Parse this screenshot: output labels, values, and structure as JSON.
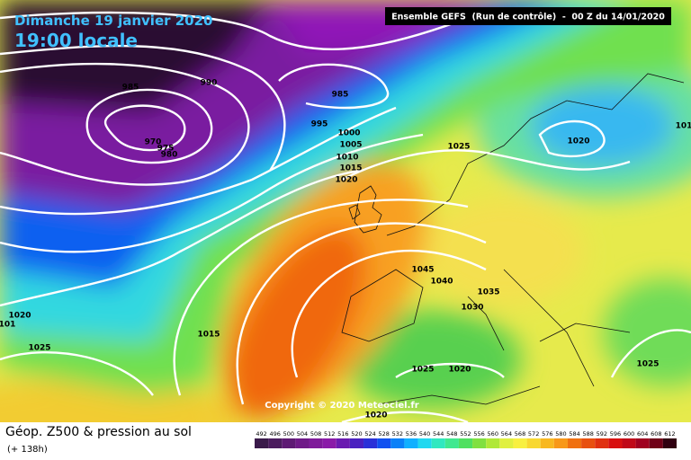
{
  "header": {
    "date": "Dimanche 19 janvier 2020",
    "time": "19:00 locale",
    "run": "Ensemble GEFS  (Run de contrôle)  -  00 Z du 14/01/2020"
  },
  "copyright": "Copyright © 2020 Meteociel.fr",
  "footer": {
    "title": "Géop. Z500 & pression au sol",
    "lead": "(+ 138h)"
  },
  "isobar_labels": [
    985,
    990,
    985,
    995,
    1000,
    1005,
    1010,
    1015,
    1020,
    970,
    975,
    980,
    1025,
    1020,
    101,
    1020,
    101,
    1025,
    1015,
    1045,
    1040,
    1035,
    1030,
    1025,
    1020,
    1025,
    1020
  ],
  "legend": {
    "ticks": [
      492,
      496,
      500,
      504,
      508,
      512,
      516,
      520,
      524,
      528,
      532,
      536,
      540,
      544,
      548,
      552,
      556,
      560,
      564,
      568,
      572,
      576,
      580,
      584,
      588,
      592,
      596,
      600,
      604,
      608,
      612
    ],
    "colors": [
      "#3a1a4a",
      "#4b1c5e",
      "#5e1a74",
      "#6f1a88",
      "#7f1a9a",
      "#8a1aa8",
      "#6a1ab0",
      "#4a20c0",
      "#2a30d8",
      "#1050f0",
      "#0a80f8",
      "#10b0ff",
      "#20d8f0",
      "#30e8c0",
      "#40e890",
      "#50e060",
      "#80e040",
      "#b0e838",
      "#e0f040",
      "#f8f040",
      "#f8d830",
      "#f8b820",
      "#f89818",
      "#f07010",
      "#e85010",
      "#e03010",
      "#d81010",
      "#c00818",
      "#a00020",
      "#700018",
      "#300010"
    ]
  }
}
